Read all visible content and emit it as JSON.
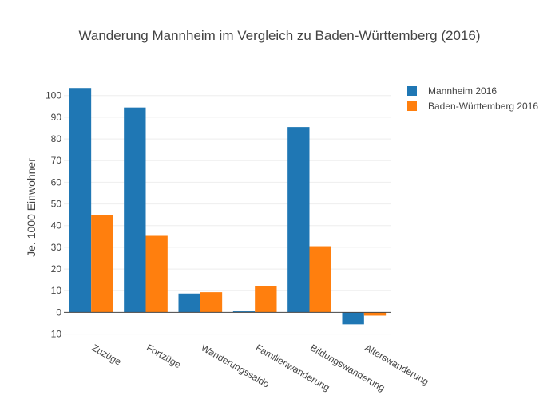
{
  "chart_data": {
    "type": "bar",
    "title": "Wanderung Mannheim im Vergleich zu Baden-Württemberg (2016)",
    "xlabel": "",
    "ylabel": "Je. 1000 Einwohner",
    "categories": [
      "Zuzüge",
      "Fortzüge",
      "Wanderungssaldo",
      "Familienwanderung",
      "Bildungswanderung",
      "Alterswanderung"
    ],
    "series": [
      {
        "name": "Mannheim 2016",
        "color": "#1f77b4",
        "values": [
          103.5,
          94.5,
          8.7,
          0.5,
          85.5,
          -5.5
        ]
      },
      {
        "name": "Baden-Württemberg 2016",
        "color": "#ff7f0e",
        "values": [
          44.8,
          35.3,
          9.3,
          12.0,
          30.5,
          -1.5
        ]
      }
    ],
    "ylim": [
      -12,
      108
    ],
    "yticks": [
      -10,
      0,
      10,
      20,
      30,
      40,
      50,
      60,
      70,
      80,
      90,
      100
    ],
    "grid": true,
    "legend_position": "top-right"
  }
}
